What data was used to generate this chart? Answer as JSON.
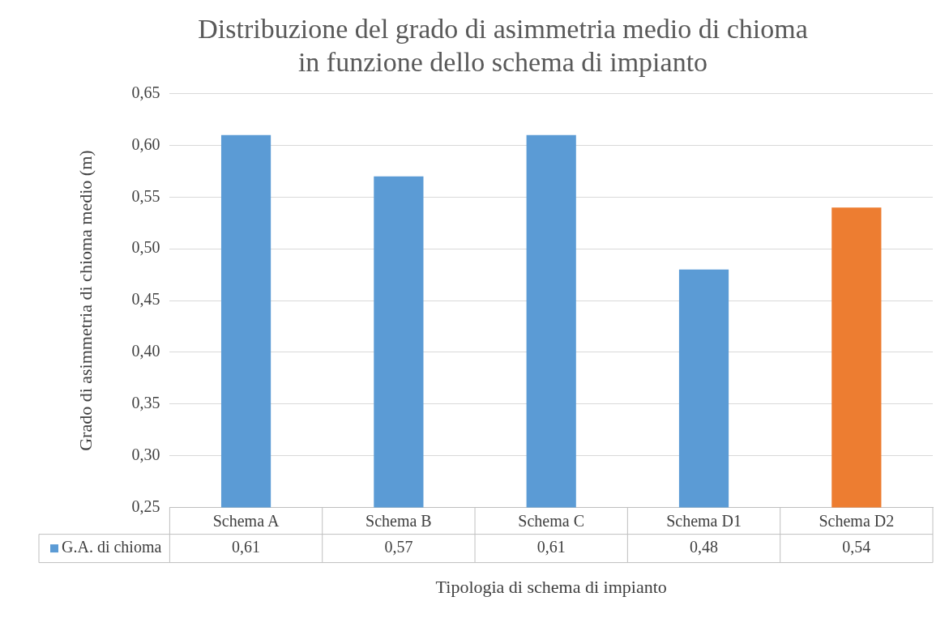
{
  "chart_data": {
    "type": "bar",
    "title": [
      "Distribuzione del grado di asimmetria medio di chioma",
      "in funzione dello schema di impianto"
    ],
    "xlabel": "Tipologia di schema di impianto",
    "ylabel": "Grado di asimmetria di chioma medio (m)",
    "categories": [
      "Schema A",
      "Schema B",
      "Schema C",
      "Schema D1",
      "Schema D2"
    ],
    "series": [
      {
        "name": "G.A. di chioma",
        "color": "#5b9bd5",
        "colors": [
          "#5b9bd5",
          "#5b9bd5",
          "#5b9bd5",
          "#5b9bd5",
          "#ed7d31"
        ],
        "values": [
          0.61,
          0.57,
          0.61,
          0.48,
          0.54
        ]
      }
    ],
    "ylim": [
      0.25,
      0.65
    ],
    "yticks": [
      {
        "value": 0.25,
        "label": "0,25"
      },
      {
        "value": 0.3,
        "label": "0,30"
      },
      {
        "value": 0.35,
        "label": "0,35"
      },
      {
        "value": 0.4,
        "label": "0,40"
      },
      {
        "value": 0.45,
        "label": "0,45"
      },
      {
        "value": 0.5,
        "label": "0,50"
      },
      {
        "value": 0.55,
        "label": "0,55"
      },
      {
        "value": 0.6,
        "label": "0,60"
      },
      {
        "value": 0.65,
        "label": "0,65"
      }
    ],
    "value_labels": [
      "0,61",
      "0,57",
      "0,61",
      "0,48",
      "0,54"
    ],
    "grid": "y"
  }
}
